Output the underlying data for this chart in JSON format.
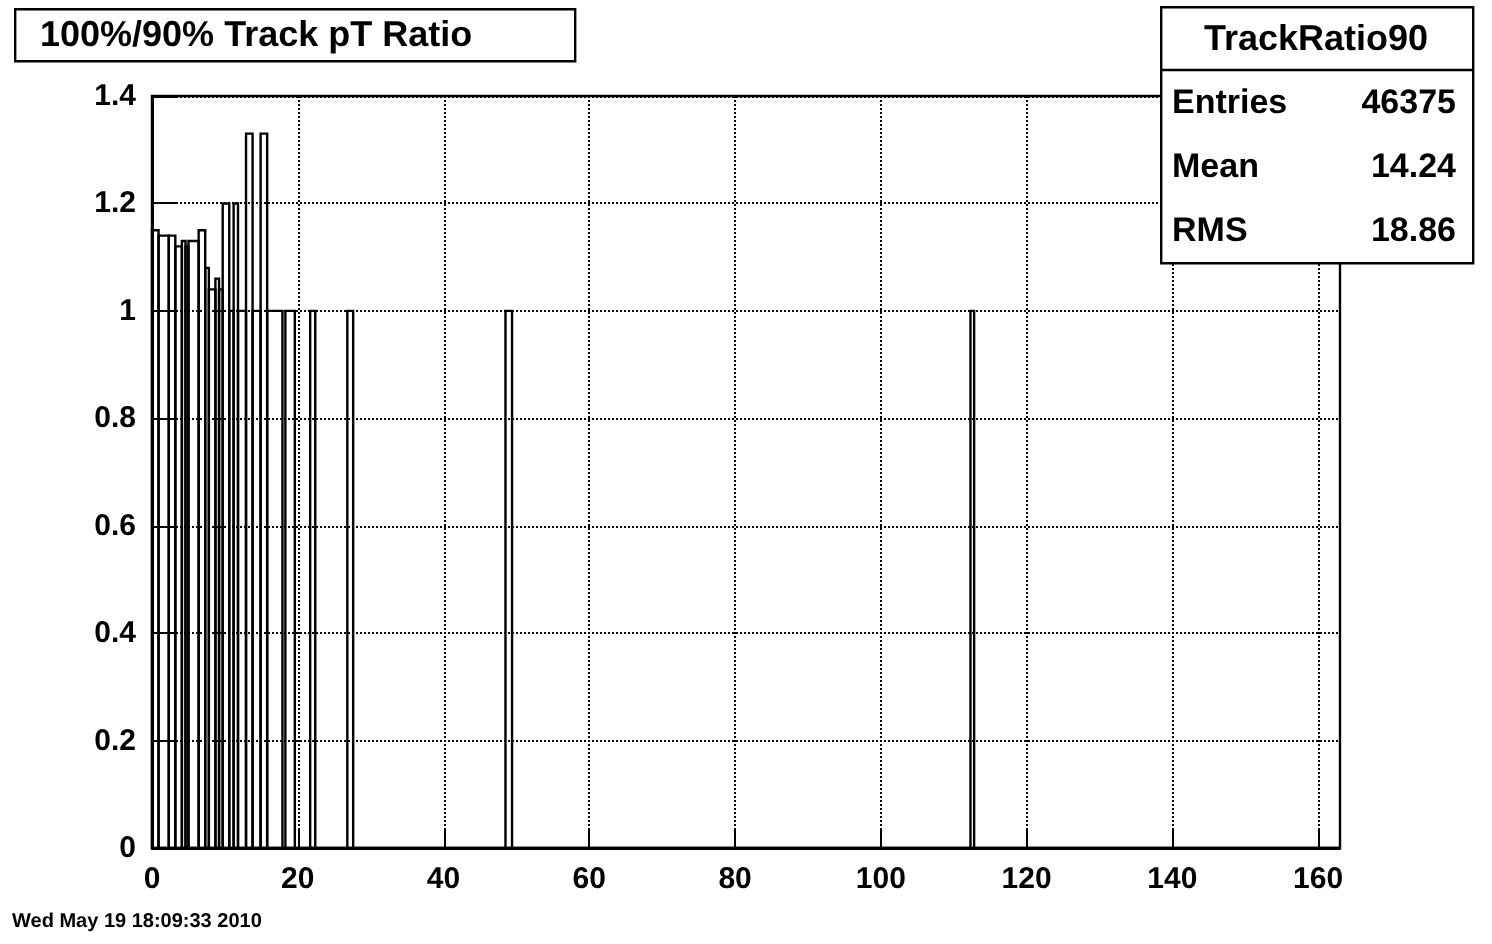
{
  "chart_data": {
    "type": "histogram",
    "title": "100%/90% Track pT Ratio",
    "bins": [
      0,
      0.9,
      2.3,
      3.2,
      4.1,
      4.6,
      5.0,
      6.4,
      7.3,
      7.8,
      8.7,
      9.2,
      9.7,
      10.6,
      11.2,
      11.8,
      12.9,
      13.8,
      14.9,
      15.8,
      17.9,
      18.3,
      19.6,
      21.7,
      22.4,
      26.8,
      27.6,
      48.5,
      49.4,
      112.3,
      112.8,
      163
    ],
    "values": [
      1.15,
      1.14,
      1.14,
      1.12,
      1.13,
      1.12,
      1.13,
      1.15,
      1.08,
      1.04,
      1.06,
      1.04,
      1.2,
      1,
      1.2,
      1,
      1.33,
      1,
      1.33,
      1,
      0,
      1,
      0,
      1,
      0,
      1,
      0,
      1,
      0,
      1,
      0
    ],
    "color": "#000000",
    "xlim": [
      0,
      163
    ],
    "xticks": [
      0,
      20,
      40,
      60,
      80,
      100,
      120,
      140,
      160
    ],
    "ylim": [
      0,
      1.4
    ],
    "yticks": [
      0,
      0.2,
      0.4,
      0.6,
      0.8,
      1,
      1.2,
      1.4
    ],
    "grid": true,
    "annotations": [
      "TrackRatio90",
      "Entries 46375",
      "Mean 14.24",
      "RMS 18.86",
      "Wed May 19 18:09:33 2010"
    ]
  }
}
